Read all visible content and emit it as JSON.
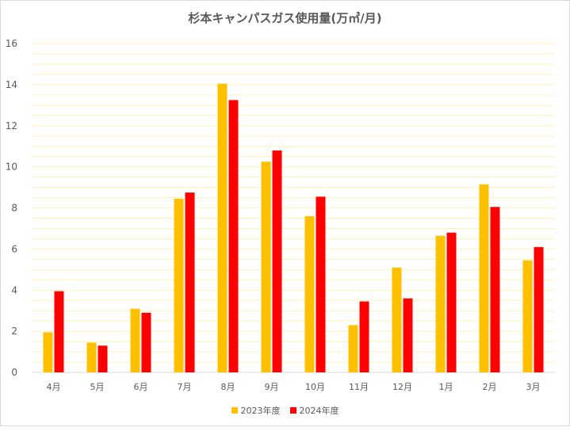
{
  "chart_data": {
    "type": "bar",
    "title": "杉本キャンパスガス使用量(万㎥/月)",
    "categories": [
      "4月",
      "5月",
      "6月",
      "7月",
      "8月",
      "9月",
      "10月",
      "11月",
      "12月",
      "1月",
      "2月",
      "3月"
    ],
    "series": [
      {
        "name": "2023年度",
        "color": "#FFC000",
        "values": [
          1.95,
          1.45,
          3.1,
          8.45,
          14.05,
          10.25,
          7.6,
          2.3,
          5.1,
          6.65,
          9.15,
          5.45
        ]
      },
      {
        "name": "2024年度",
        "color": "#FF0000",
        "values": [
          3.95,
          1.3,
          2.9,
          8.75,
          13.25,
          10.8,
          8.55,
          3.45,
          3.6,
          6.8,
          8.05,
          6.1
        ]
      }
    ],
    "ylim": [
      0,
      16
    ],
    "yticks": [
      "0",
      "2",
      "4",
      "6",
      "8",
      "10",
      "12",
      "14",
      "16"
    ],
    "grid": true,
    "gridline_color": "#FFF2B3",
    "legend_position": "bottom"
  }
}
